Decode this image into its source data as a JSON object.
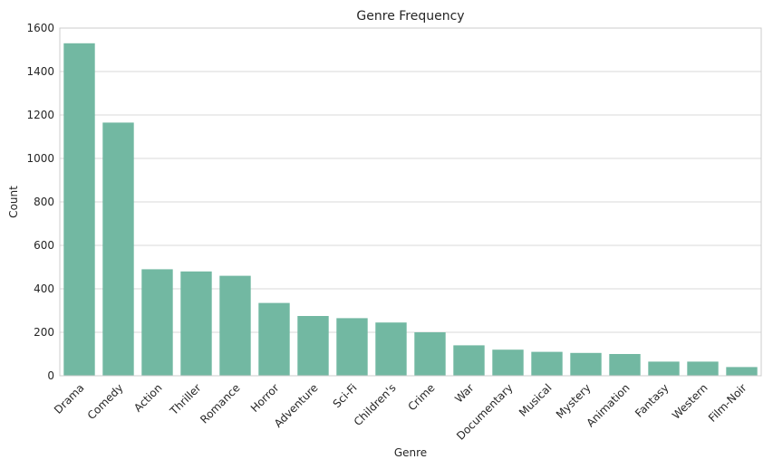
{
  "chart_data": {
    "type": "bar",
    "title": "Genre Frequency",
    "xlabel": "Genre",
    "ylabel": "Count",
    "categories": [
      "Drama",
      "Comedy",
      "Action",
      "Thriller",
      "Romance",
      "Horror",
      "Adventure",
      "Sci-Fi",
      "Children's",
      "Crime",
      "War",
      "Documentary",
      "Musical",
      "Mystery",
      "Animation",
      "Fantasy",
      "Western",
      "Film-Noir"
    ],
    "values": [
      1530,
      1165,
      490,
      480,
      460,
      335,
      275,
      265,
      245,
      200,
      140,
      120,
      110,
      105,
      100,
      65,
      65,
      40
    ],
    "ylim": [
      0,
      1600
    ],
    "yticks": [
      0,
      200,
      400,
      600,
      800,
      1000,
      1200,
      1400,
      1600
    ],
    "grid": true,
    "bar_color": "#72b8a2",
    "grid_color": "#cccccc",
    "text_color": "#262626"
  }
}
